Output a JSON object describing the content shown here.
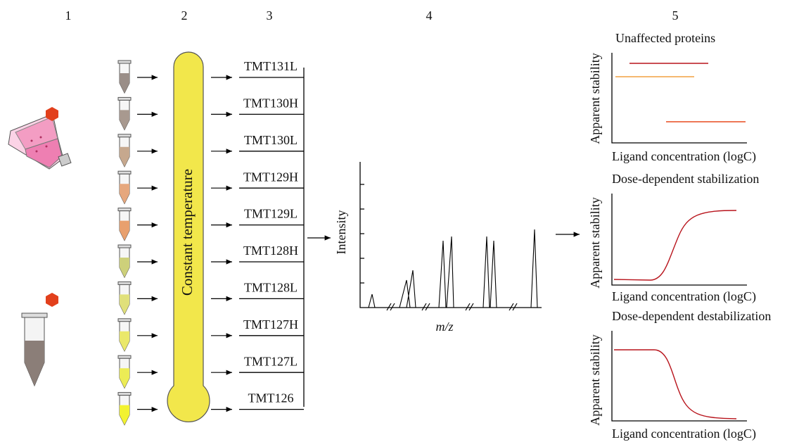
{
  "steps": [
    "1",
    "2",
    "3",
    "4",
    "5"
  ],
  "thermometer_label": "Constant temperature",
  "tmt_labels": [
    "TMT131L",
    "TMT130H",
    "TMT130L",
    "TMT129H",
    "TMT129L",
    "TMT128H",
    "TMT128L",
    "TMT127H",
    "TMT127L",
    "TMT126"
  ],
  "spectrum": {
    "y_label": "Intensity",
    "x_label": "m/z"
  },
  "panels": [
    {
      "title": "Unaffected proteins",
      "y_label": "Apparent stability",
      "x_label": "Ligand concentration (logC)"
    },
    {
      "title": "Dose-dependent stabilization",
      "y_label": "Apparent stability",
      "x_label": "Ligand concentration (logC)"
    },
    {
      "title": "Dose-dependent destabilization",
      "y_label": "Apparent stability",
      "x_label": "Ligand concentration (logC)"
    }
  ]
}
